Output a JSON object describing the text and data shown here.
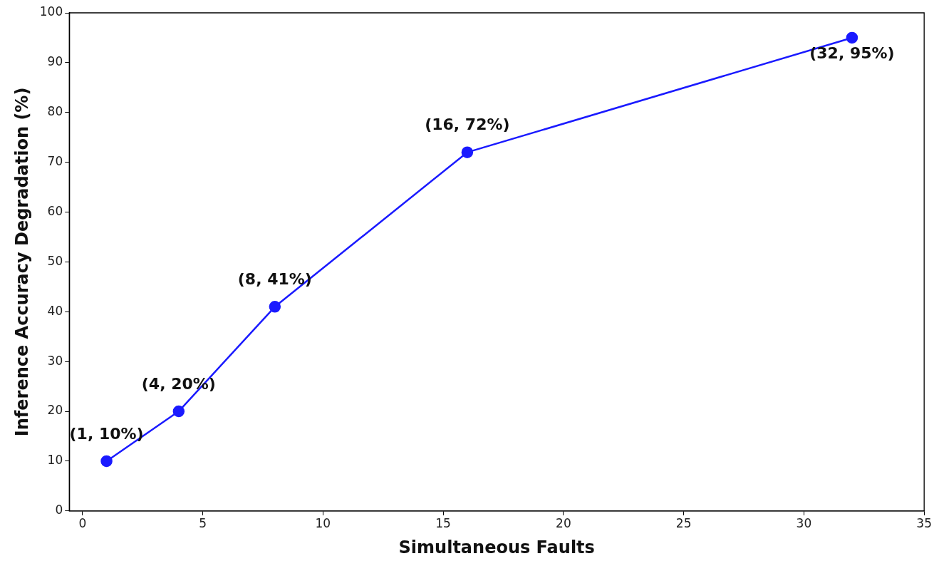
{
  "chart_data": {
    "type": "line",
    "xlabel": "Simultaneous Faults",
    "ylabel": "Inference Accuracy Degradation (%)",
    "x": [
      1,
      4,
      8,
      16,
      32
    ],
    "series": [
      {
        "color": "#1a1aff",
        "values": [
          10,
          20,
          41,
          72,
          95
        ],
        "value_labels": [
          "(1, 10%)",
          "(4, 20%)",
          "(8, 41%)",
          "(16, 72%)",
          "(32, 95%)"
        ]
      }
    ],
    "xlim": [
      -0.55,
      35
    ],
    "xticks": [
      0,
      5,
      10,
      15,
      20,
      25,
      30,
      35
    ],
    "ylim": [
      0,
      100
    ],
    "yticks": [
      0,
      10,
      20,
      30,
      40,
      50,
      60,
      70,
      80,
      90,
      100
    ],
    "grid": false,
    "legend": false,
    "marker": "circle",
    "line_style": "solid"
  }
}
